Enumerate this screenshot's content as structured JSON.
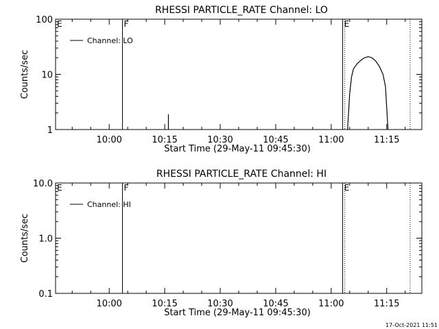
{
  "footer": {
    "timestamp": "17-Oct-2021 11:51"
  },
  "chart_data": [
    {
      "type": "line",
      "title": "RHESSI PARTICLE_RATE Channel: LO",
      "xlabel": "Start Time (29-May-11 09:45:30)",
      "ylabel": "Counts/sec",
      "yscale": "log",
      "xlim": [
        "09:45:30",
        "11:24:30"
      ],
      "ylim": [
        1,
        100
      ],
      "x_ticks": [
        "10:00",
        "10:15",
        "10:30",
        "10:45",
        "11:00",
        "11:15"
      ],
      "y_ticks": [
        "1",
        "10",
        "100"
      ],
      "legend": {
        "entries": [
          "Channel: LO"
        ],
        "placement": "top-left"
      },
      "markers": [
        {
          "label": "E",
          "time": "09:45:30",
          "style": "solid"
        },
        {
          "label": "F",
          "time": "10:03:35",
          "style": "solid"
        },
        {
          "label": "E",
          "time": "11:03:06",
          "style": "solid"
        },
        {
          "label": "",
          "time": "11:03:40",
          "style": "dotted"
        },
        {
          "label": "",
          "time": "11:21:20",
          "style": "dotted"
        }
      ],
      "series": [
        {
          "name": "Channel: LO",
          "segments": [
            [
              {
                "x": "10:16:00",
                "y": 1.0
              },
              {
                "x": "10:16:00",
                "y": 1.9
              }
            ],
            [
              {
                "x": "11:04:25",
                "y": 1.0
              },
              {
                "x": "11:05:00",
                "y": 4.5
              },
              {
                "x": "11:05:30",
                "y": 9.0
              },
              {
                "x": "11:06:00",
                "y": 12.5
              },
              {
                "x": "11:07:00",
                "y": 15.5
              },
              {
                "x": "11:08:00",
                "y": 18.0
              },
              {
                "x": "11:09:00",
                "y": 20.0
              },
              {
                "x": "11:10:00",
                "y": 21.0
              },
              {
                "x": "11:11:00",
                "y": 20.0
              },
              {
                "x": "11:12:00",
                "y": 17.5
              },
              {
                "x": "11:13:00",
                "y": 14.0
              },
              {
                "x": "11:14:00",
                "y": 10.0
              },
              {
                "x": "11:14:40",
                "y": 6.0
              },
              {
                "x": "11:15:05",
                "y": 2.0
              },
              {
                "x": "11:15:20",
                "y": 1.0
              }
            ]
          ]
        }
      ]
    },
    {
      "type": "line",
      "title": "RHESSI PARTICLE_RATE Channel: HI",
      "xlabel": "Start Time (29-May-11 09:45:30)",
      "ylabel": "Counts/sec",
      "yscale": "log",
      "xlim": [
        "09:45:30",
        "11:24:30"
      ],
      "ylim": [
        0.1,
        10
      ],
      "x_ticks": [
        "10:00",
        "10:15",
        "10:30",
        "10:45",
        "11:00",
        "11:15"
      ],
      "y_ticks": [
        "0.1",
        "1.0",
        "10.0"
      ],
      "legend": {
        "entries": [
          "Channel: HI"
        ],
        "placement": "top-left"
      },
      "markers": [
        {
          "label": "E",
          "time": "09:45:30",
          "style": "solid"
        },
        {
          "label": "F",
          "time": "10:03:35",
          "style": "solid"
        },
        {
          "label": "E",
          "time": "11:03:06",
          "style": "solid"
        },
        {
          "label": "",
          "time": "11:03:40",
          "style": "dotted"
        },
        {
          "label": "",
          "time": "11:21:20",
          "style": "dotted"
        }
      ],
      "series": [
        {
          "name": "Channel: HI",
          "segments": []
        }
      ]
    }
  ]
}
